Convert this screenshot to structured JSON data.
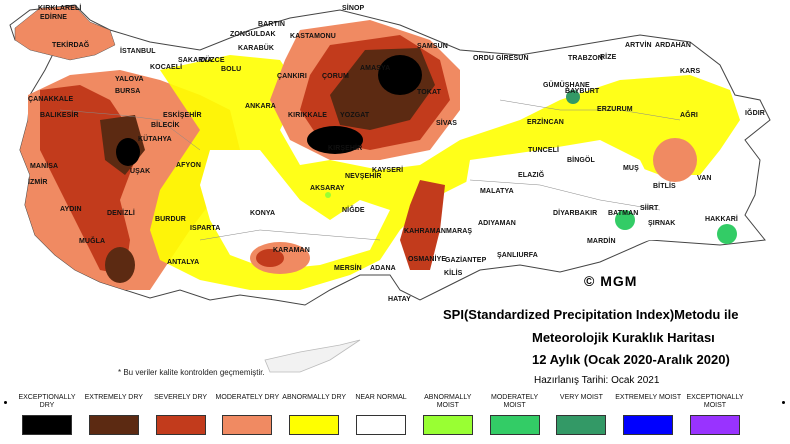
{
  "map": {
    "copyright": "© MGM",
    "note": "* Bu veriler kalite kontrolden geçmemiştir.",
    "title_lines": [
      "SPI(Standardized Precipitation Index)Metodu ile",
      "Meteorolojik Kuraklık Haritası",
      "12 Aylık (Ocak 2020-Aralık 2020)"
    ],
    "prepared": "Hazırlanış Tarihi: Ocak 2021",
    "cities": [
      "KIRKLARELİ",
      "EDİRNE",
      "TEKİRDAĞ",
      "İSTANBUL",
      "KOCAELİ",
      "SAKARYA",
      "DÜZCE",
      "BARTIN",
      "ZONGULDAK",
      "KARABÜK",
      "KASTAMONU",
      "SİNOP",
      "SAMSUN",
      "ORDU",
      "GİRESUN",
      "TRABZON",
      "RİZE",
      "ARTVİN",
      "ARDAHAN",
      "KARS",
      "IĞDIR",
      "AĞRI",
      "ERZURUM",
      "BAYBURT",
      "GÜMÜŞHANE",
      "ERZİNCAN",
      "TUNCELİ",
      "BİNGÖL",
      "MUŞ",
      "BİTLİS",
      "VAN",
      "HAKKARİ",
      "ŞIRNAK",
      "SİİRT",
      "BATMAN",
      "DİYARBAKIR",
      "MARDİN",
      "ŞANLIURFA",
      "ADIYAMAN",
      "MALATYA",
      "ELAZIĞ",
      "SİVAS",
      "TOKAT",
      "AMASYA",
      "ÇORUM",
      "ÇANKIRI",
      "YOZGAT",
      "KIRIKKALE",
      "ANKARA",
      "KIRŞEHİR",
      "NEVŞEHİR",
      "KAYSERİ",
      "AKSARAY",
      "NİĞDE",
      "KONYA",
      "KARAMAN",
      "MERSİN",
      "ADANA",
      "OSMANİYE",
      "KAHRAMANMARAŞ",
      "GAZİANTEP",
      "KİLİS",
      "HATAY",
      "ANTALYA",
      "ISPARTA",
      "BURDUR",
      "AFYON",
      "KÜTAHYA",
      "ESKİŞEHİR",
      "BİLECİK",
      "BURSA",
      "YALOVA",
      "BOLU",
      "BALIKESİR",
      "ÇANAKKALE",
      "MANİSA",
      "İZMİR",
      "UŞAK",
      "AYDIN",
      "DENİZLİ",
      "MUĞLA",
      "KARAMAN",
      "OSMANİYE"
    ]
  },
  "legend": [
    {
      "label": "EXCEPTIONALLY DRY",
      "color": "#000000"
    },
    {
      "label": "EXTREMELY DRY",
      "color": "#5c2a12"
    },
    {
      "label": "SEVERELY DRY",
      "color": "#c23b1c"
    },
    {
      "label": "MODERATELY DRY",
      "color": "#f08a62"
    },
    {
      "label": "ABNORMALLY DRY",
      "color": "#ffff00"
    },
    {
      "label": "NEAR NORMAL",
      "color": "#ffffff"
    },
    {
      "label": "ABNORMALLY MOIST",
      "color": "#99ff33"
    },
    {
      "label": "MODERATELY MOIST",
      "color": "#33cc66"
    },
    {
      "label": "VERY MOIST",
      "color": "#339966"
    },
    {
      "label": "EXTREMELY MOIST",
      "color": "#0000ff"
    },
    {
      "label": "EXCEPTIONALLY MOIST",
      "color": "#9933ff"
    }
  ]
}
